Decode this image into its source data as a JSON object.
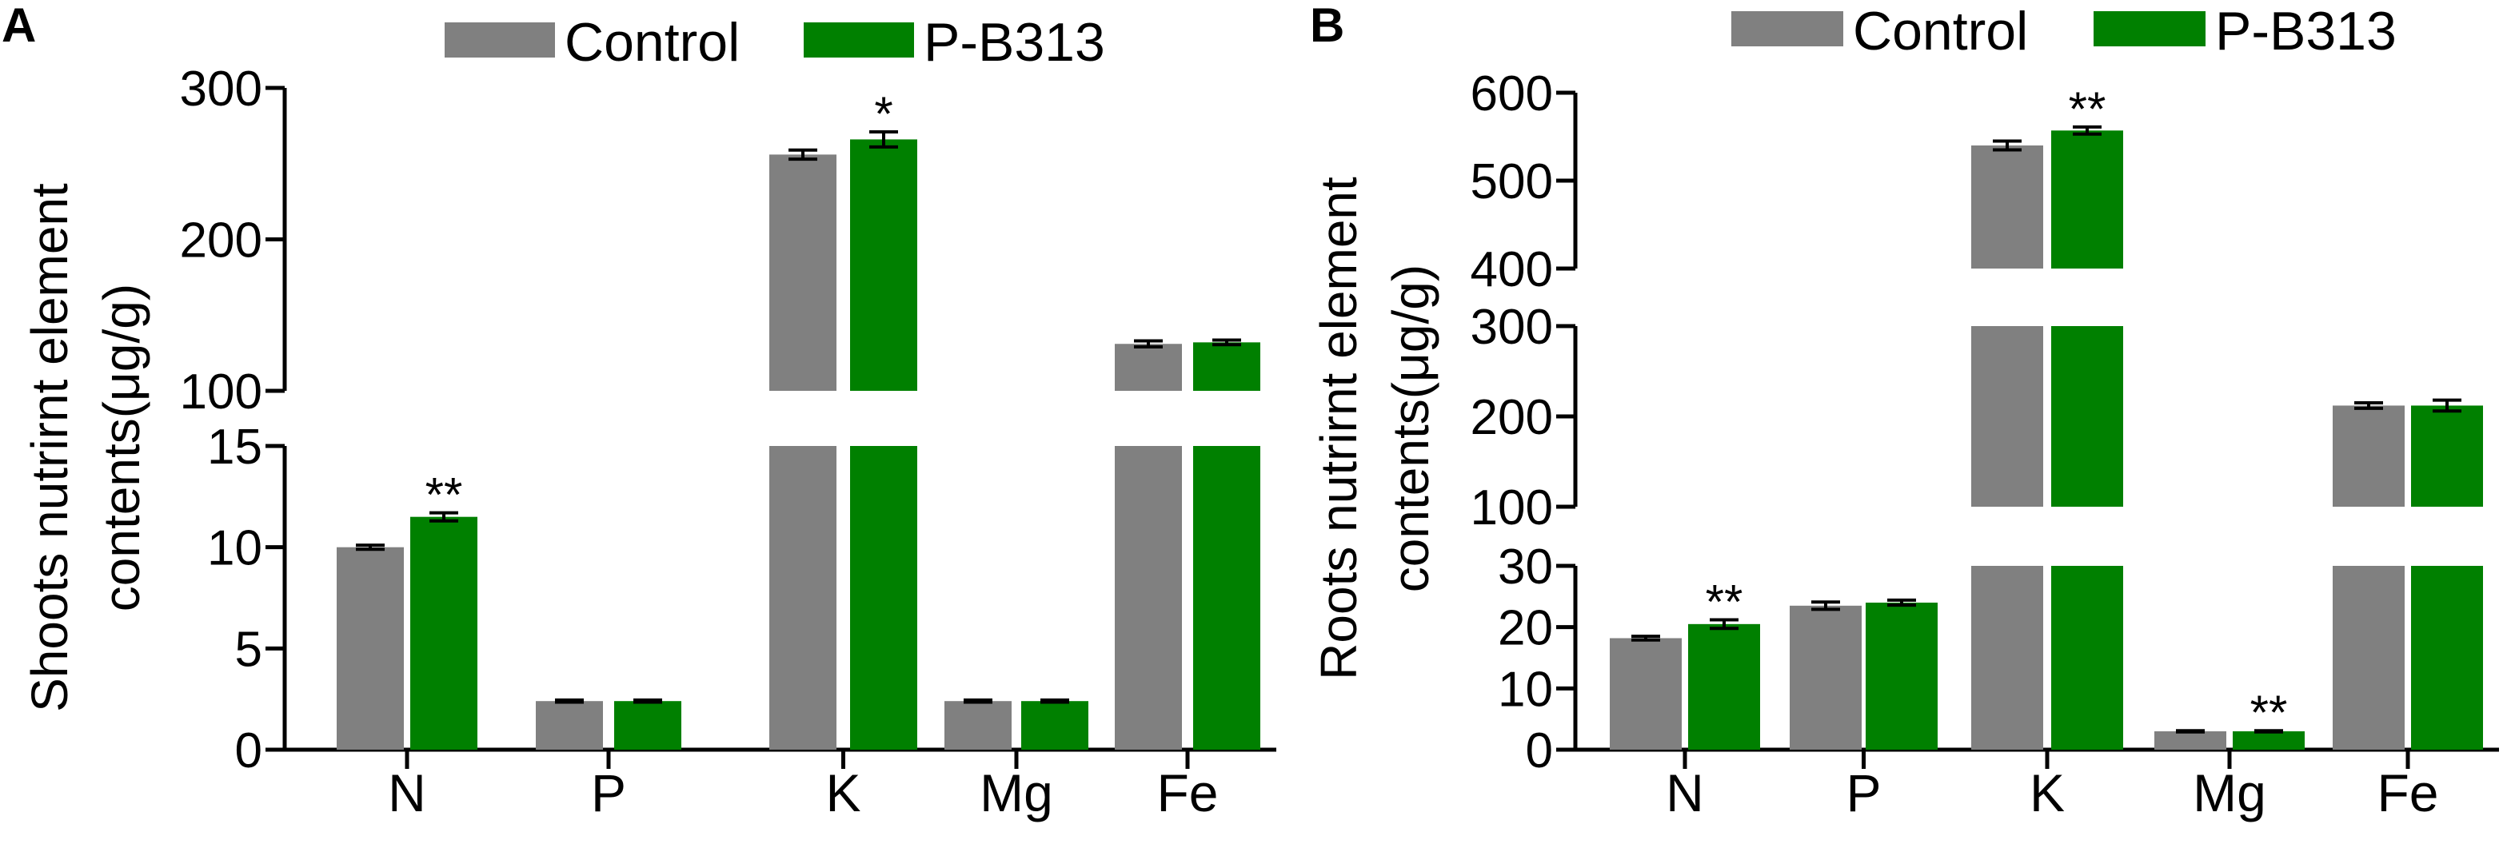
{
  "chart_data": [
    {
      "type": "bar",
      "panel_label": "A",
      "ylabel_lines": [
        "Shoots nutrirnt element",
        "contents(μg/g)"
      ],
      "categories": [
        "N",
        "P",
        "K",
        "Mg",
        "Fe"
      ],
      "legend_position": "top",
      "grid": false,
      "axis_break": true,
      "y_segments": [
        {
          "range": [
            0,
            15
          ],
          "ticks": [
            0,
            5,
            10,
            15
          ],
          "tick_labels": [
            "0",
            "5",
            "10",
            "15"
          ]
        },
        {
          "range": [
            100,
            300
          ],
          "ticks": [
            100,
            200,
            300
          ],
          "tick_labels": [
            "100",
            "200",
            "300"
          ]
        }
      ],
      "series": [
        {
          "name": "Control",
          "color": "#808080",
          "values": [
            10.0,
            2.4,
            256,
            2.4,
            131
          ],
          "errors": [
            0.1,
            0.05,
            3,
            0.05,
            2
          ]
        },
        {
          "name": "P-B313",
          "color": "#008000",
          "values": [
            11.5,
            2.4,
            266,
            2.4,
            132
          ],
          "errors": [
            0.2,
            0.05,
            5,
            0.05,
            1.5
          ]
        }
      ],
      "annotations": [
        {
          "series": 1,
          "category": "N",
          "text": "**"
        },
        {
          "series": 1,
          "category": "K",
          "text": "*"
        }
      ]
    },
    {
      "type": "bar",
      "panel_label": "B",
      "ylabel_lines": [
        "Roots nutrirnt element",
        "contents(μg/g)"
      ],
      "categories": [
        "N",
        "P",
        "K",
        "Mg",
        "Fe"
      ],
      "legend_position": "top",
      "grid": false,
      "axis_break": true,
      "y_segments": [
        {
          "range": [
            0,
            30
          ],
          "ticks": [
            0,
            10,
            20,
            30
          ],
          "tick_labels": [
            "0",
            "10",
            "20",
            "30"
          ]
        },
        {
          "range": [
            100,
            300
          ],
          "ticks": [
            100,
            200,
            300
          ],
          "tick_labels": [
            "100",
            "200",
            "300"
          ]
        },
        {
          "range": [
            400,
            600
          ],
          "ticks": [
            400,
            500,
            600
          ],
          "tick_labels": [
            "400",
            "500",
            "600"
          ]
        }
      ],
      "series": [
        {
          "name": "Control",
          "color": "#808080",
          "values": [
            18.2,
            23.5,
            540,
            3.0,
            212
          ],
          "errors": [
            0.3,
            0.6,
            5,
            0.1,
            3
          ]
        },
        {
          "name": "P-B313",
          "color": "#008000",
          "values": [
            20.5,
            24.0,
            557,
            3.0,
            212
          ],
          "errors": [
            0.7,
            0.4,
            4,
            0.1,
            6
          ]
        }
      ],
      "annotations": [
        {
          "series": 1,
          "category": "N",
          "text": "**"
        },
        {
          "series": 1,
          "category": "K",
          "text": "**"
        },
        {
          "series": 1,
          "category": "Mg",
          "text": "**"
        }
      ]
    }
  ]
}
